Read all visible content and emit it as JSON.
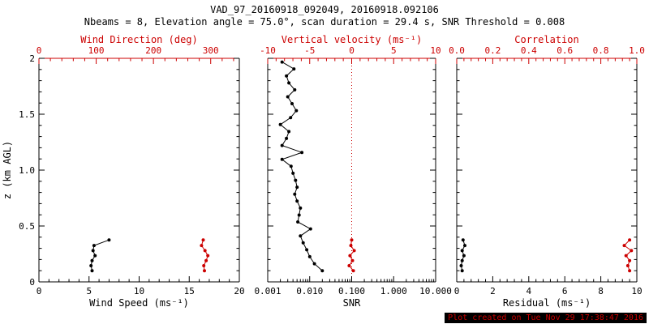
{
  "header": {
    "title": "VAD_97_20160918_092049, 20160918.092106",
    "subtitle": "Nbeams = 8, Elevation angle = 75.0°, scan duration = 29.4 s, SNR Threshold = 0.008"
  },
  "footer": {
    "created": "Plot created on Tue Nov 29 17:38:47 2016"
  },
  "colors": {
    "axis": "#000000",
    "accent": "#cc0000",
    "background": "#ffffff"
  },
  "y_label": "z (km AGL)",
  "chart_data": [
    {
      "name": "wind",
      "type": "line",
      "y_axis": {
        "label": "z (km AGL)",
        "min": 0,
        "max": 2,
        "show_labels": true,
        "ticks": [
          {
            "v": 0,
            "label": "0"
          },
          {
            "v": 0.5,
            "label": "0.5"
          },
          {
            "v": 1,
            "label": "1.0"
          },
          {
            "v": 1.5,
            "label": "1.5"
          },
          {
            "v": 2,
            "label": "2"
          }
        ]
      },
      "bottom_axis": {
        "label": "Wind Speed (ms⁻¹)",
        "min": 0,
        "max": 20,
        "scale": "linear",
        "ticks": [
          {
            "v": 0,
            "label": "0"
          },
          {
            "v": 5,
            "label": "5"
          },
          {
            "v": 10,
            "label": "10"
          },
          {
            "v": 15,
            "label": "15"
          },
          {
            "v": 20,
            "label": "20"
          }
        ]
      },
      "top_axis": {
        "label": "Wind Direction (deg)",
        "min": 0,
        "max": 350,
        "scale": "linear",
        "ticks": [
          {
            "v": 0,
            "label": "0"
          },
          {
            "v": 100,
            "label": "100"
          },
          {
            "v": 200,
            "label": "200"
          },
          {
            "v": 300,
            "label": "300"
          }
        ]
      },
      "series": [
        {
          "name": "wind-speed",
          "axis": "bottom",
          "color": "black",
          "points": [
            [
              5.3,
              0.1
            ],
            [
              5.2,
              0.145
            ],
            [
              5.3,
              0.19
            ],
            [
              5.6,
              0.235
            ],
            [
              5.4,
              0.28
            ],
            [
              5.5,
              0.325
            ],
            [
              7.0,
              0.375
            ]
          ]
        },
        {
          "name": "wind-direction",
          "axis": "top",
          "color": "accent",
          "points": [
            [
              289,
              0.1
            ],
            [
              288,
              0.145
            ],
            [
              292,
              0.19
            ],
            [
              295,
              0.235
            ],
            [
              290,
              0.28
            ],
            [
              284,
              0.325
            ],
            [
              287,
              0.375
            ]
          ]
        }
      ]
    },
    {
      "name": "snr",
      "type": "line",
      "y_axis": {
        "label": "",
        "min": 0,
        "max": 2,
        "show_labels": false,
        "ticks": [
          {
            "v": 0,
            "label": "0"
          },
          {
            "v": 0.5,
            "label": "0.5"
          },
          {
            "v": 1,
            "label": "1.0"
          },
          {
            "v": 1.5,
            "label": "1.5"
          },
          {
            "v": 2,
            "label": "2"
          }
        ]
      },
      "bottom_axis": {
        "label": "SNR",
        "min": 0.001,
        "max": 10,
        "scale": "log",
        "ticks": [
          {
            "v": 0.001,
            "label": "0.001"
          },
          {
            "v": 0.01,
            "label": "0.010"
          },
          {
            "v": 0.1,
            "label": "0.100"
          },
          {
            "v": 1,
            "label": "1.000"
          },
          {
            "v": 10,
            "label": "10.000"
          }
        ]
      },
      "top_axis": {
        "label": "Vertical velocity (ms⁻¹)",
        "min": -10,
        "max": 10,
        "scale": "linear",
        "ticks": [
          {
            "v": -10,
            "label": "-10"
          },
          {
            "v": -5,
            "label": "-5"
          },
          {
            "v": 0,
            "label": "0"
          },
          {
            "v": 5,
            "label": "5"
          },
          {
            "v": 10,
            "label": "10"
          }
        ]
      },
      "refline": {
        "axis": "top",
        "v": 0
      },
      "series": [
        {
          "name": "snr-profile",
          "axis": "bottom",
          "color": "black",
          "points": [
            [
              0.02,
              0.1
            ],
            [
              0.013,
              0.162
            ],
            [
              0.01,
              0.225
            ],
            [
              0.0085,
              0.287
            ],
            [
              0.007,
              0.349
            ],
            [
              0.006,
              0.411
            ],
            [
              0.0105,
              0.474
            ],
            [
              0.0052,
              0.536
            ],
            [
              0.0056,
              0.598
            ],
            [
              0.006,
              0.66
            ],
            [
              0.005,
              0.723
            ],
            [
              0.0044,
              0.785
            ],
            [
              0.005,
              0.847
            ],
            [
              0.0046,
              0.909
            ],
            [
              0.004,
              0.972
            ],
            [
              0.0036,
              1.034
            ],
            [
              0.0022,
              1.096
            ],
            [
              0.0065,
              1.158
            ],
            [
              0.0022,
              1.22
            ],
            [
              0.0028,
              1.283
            ],
            [
              0.0032,
              1.345
            ],
            [
              0.002,
              1.407
            ],
            [
              0.0035,
              1.469
            ],
            [
              0.0048,
              1.532
            ],
            [
              0.0038,
              1.594
            ],
            [
              0.003,
              1.656
            ],
            [
              0.0044,
              1.718
            ],
            [
              0.0032,
              1.78
            ],
            [
              0.0028,
              1.843
            ],
            [
              0.0042,
              1.905
            ],
            [
              0.0022,
              1.967
            ]
          ]
        },
        {
          "name": "vertical-velocity",
          "axis": "top",
          "color": "accent",
          "points": [
            [
              0.2,
              0.1
            ],
            [
              -0.3,
              0.145
            ],
            [
              0.1,
              0.19
            ],
            [
              -0.2,
              0.235
            ],
            [
              0.3,
              0.28
            ],
            [
              -0.1,
              0.325
            ],
            [
              0.0,
              0.375
            ]
          ]
        }
      ]
    },
    {
      "name": "residual",
      "type": "line",
      "y_axis": {
        "label": "",
        "min": 0,
        "max": 2,
        "show_labels": false,
        "ticks": [
          {
            "v": 0,
            "label": "0"
          },
          {
            "v": 0.5,
            "label": "0.5"
          },
          {
            "v": 1,
            "label": "1.0"
          },
          {
            "v": 1.5,
            "label": "1.5"
          },
          {
            "v": 2,
            "label": "2"
          }
        ]
      },
      "bottom_axis": {
        "label": "Residual (ms⁻¹)",
        "min": 0,
        "max": 10,
        "scale": "linear",
        "ticks": [
          {
            "v": 0,
            "label": "0"
          },
          {
            "v": 2,
            "label": "2"
          },
          {
            "v": 4,
            "label": "4"
          },
          {
            "v": 6,
            "label": "6"
          },
          {
            "v": 8,
            "label": "8"
          },
          {
            "v": 10,
            "label": "10"
          }
        ]
      },
      "top_axis": {
        "label": "Correlation",
        "min": 0,
        "max": 1,
        "scale": "linear",
        "ticks": [
          {
            "v": 0,
            "label": "0.0"
          },
          {
            "v": 0.2,
            "label": "0.2"
          },
          {
            "v": 0.4,
            "label": "0.4"
          },
          {
            "v": 0.6,
            "label": "0.6"
          },
          {
            "v": 0.8,
            "label": "0.8"
          },
          {
            "v": 1,
            "label": "1.0"
          }
        ]
      },
      "series": [
        {
          "name": "residual-profile",
          "axis": "bottom",
          "color": "black",
          "points": [
            [
              0.3,
              0.1
            ],
            [
              0.25,
              0.145
            ],
            [
              0.3,
              0.19
            ],
            [
              0.4,
              0.235
            ],
            [
              0.3,
              0.28
            ],
            [
              0.45,
              0.325
            ],
            [
              0.35,
              0.375
            ]
          ]
        },
        {
          "name": "correlation",
          "axis": "top",
          "color": "accent",
          "points": [
            [
              0.96,
              0.1
            ],
            [
              0.95,
              0.145
            ],
            [
              0.96,
              0.19
            ],
            [
              0.94,
              0.235
            ],
            [
              0.97,
              0.28
            ],
            [
              0.93,
              0.325
            ],
            [
              0.96,
              0.375
            ]
          ]
        }
      ]
    }
  ]
}
